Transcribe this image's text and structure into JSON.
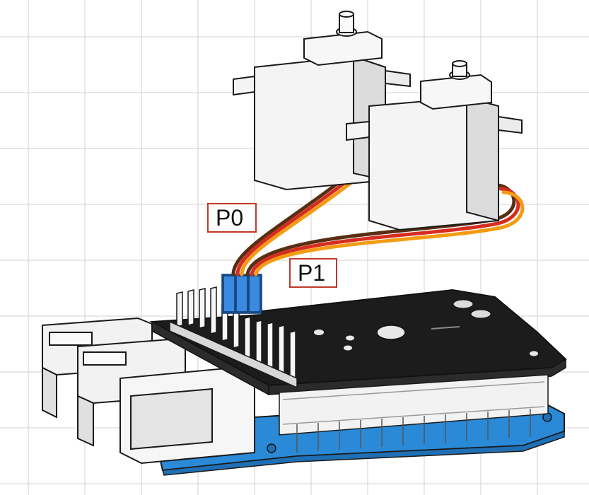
{
  "labels": {
    "servo_0_port": "P0",
    "servo_1_port": "P1"
  },
  "colors": {
    "grid_line": "#cfcfcf",
    "label_border": "#c0392b",
    "pcb_black": "#1b1b1b",
    "base_board_blue": "#2a8ad8",
    "header_blue": "#2878d0",
    "servo_white": "#f4f4f4",
    "wire_orange": "#f39c12",
    "wire_red": "#d62d20",
    "wire_brown": "#5a2e12"
  },
  "components": {
    "servos": [
      "servo",
      "servo"
    ],
    "connector": "pin-header",
    "hat_board": "expansion-hat",
    "base_board": "single-board-computer"
  }
}
